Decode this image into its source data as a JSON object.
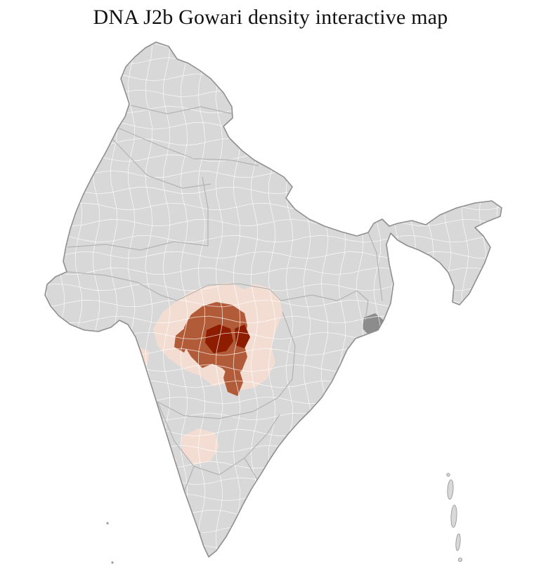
{
  "page": {
    "title": "DNA J2b Gowari density interactive map"
  },
  "map": {
    "label": "India district-level choropleth",
    "colors": {
      "background": "#ffffff",
      "land": "#d8d8d8",
      "outline": "#8f8f8f",
      "state_border": "#b3b3b3",
      "district_border": "#ffffff",
      "density_low": "#f3ddd2",
      "density_medium": "#b25b38",
      "density_high": "#8e1d00",
      "dark_district": "#8c8c8c",
      "island": "#9a9a9a"
    }
  }
}
